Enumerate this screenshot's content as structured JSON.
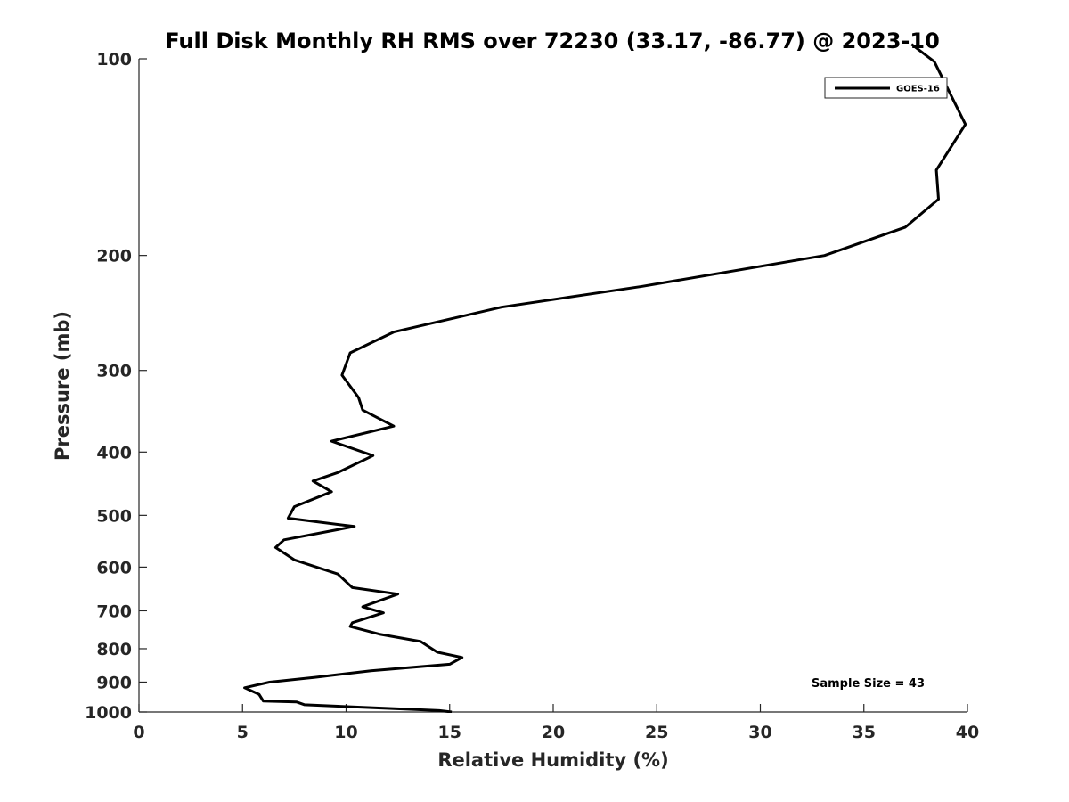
{
  "chart_data": {
    "type": "line",
    "title": "Full Disk Monthly RH RMS over 72230 (33.17, -86.77) @ 2023-10",
    "xlabel": "Relative Humidity (%)",
    "ylabel": "Pressure (mb)",
    "xlim": [
      0,
      40
    ],
    "ylim": [
      100,
      1000
    ],
    "y_scale": "log",
    "y_reversed": true,
    "xticks": [
      0,
      5,
      10,
      15,
      20,
      25,
      30,
      35,
      40
    ],
    "xtick_labels": [
      "0",
      "5",
      "10",
      "15",
      "20",
      "25",
      "30",
      "35",
      "40"
    ],
    "yticks": [
      100,
      200,
      300,
      400,
      500,
      600,
      700,
      800,
      900,
      1000
    ],
    "ytick_labels": [
      "100",
      "200",
      "300",
      "400",
      "500",
      "600",
      "700",
      "800",
      "900",
      "1000"
    ],
    "grid": false,
    "legend_position": "top-right",
    "series": [
      {
        "name": "GOES-16",
        "color": "#000000",
        "x": [
          15.1,
          14.5,
          8.0,
          7.6,
          6.0,
          5.8,
          5.1,
          6.3,
          8.5,
          11.2,
          15.0,
          15.6,
          14.4,
          13.6,
          11.6,
          10.2,
          10.3,
          11.8,
          10.8,
          12.5,
          10.3,
          9.6,
          7.5,
          6.6,
          7.0,
          10.4,
          7.2,
          7.5,
          9.3,
          8.4,
          9.6,
          11.3,
          9.3,
          12.3,
          10.8,
          10.6,
          9.8,
          10.2,
          12.3,
          17.5,
          24.3,
          33.1,
          37.0,
          38.6,
          38.5,
          39.9,
          38.4,
          37.3
        ],
        "y": [
          1000,
          995,
          975,
          965,
          962,
          940,
          918,
          900,
          885,
          865,
          845,
          825,
          810,
          780,
          760,
          740,
          730,
          705,
          690,
          660,
          645,
          615,
          585,
          560,
          545,
          520,
          505,
          485,
          460,
          443,
          430,
          405,
          385,
          365,
          345,
          330,
          305,
          282,
          262,
          240,
          223,
          200,
          181,
          164,
          148,
          126,
          101,
          95
        ]
      }
    ],
    "annotations": [
      "Sample Size = 43"
    ]
  }
}
